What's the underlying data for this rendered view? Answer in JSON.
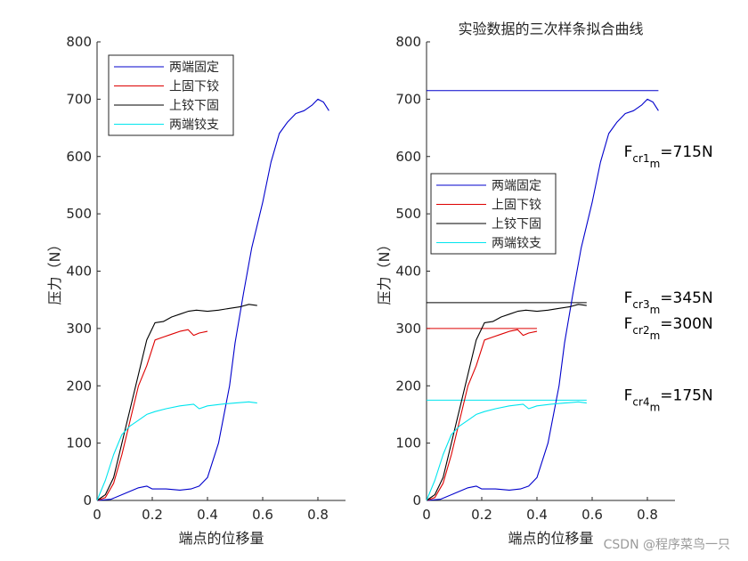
{
  "watermark": "CSDN @程序菜鸟一只",
  "colors": {
    "axis": "#262626",
    "series": [
      "#0000cc",
      "#dd0000",
      "#000000",
      "#00e5ee"
    ]
  },
  "chart_data": [
    {
      "type": "line",
      "title": "",
      "xlabel": "端点的位移量",
      "ylabel": "压力（N）",
      "xlim": [
        0,
        0.9
      ],
      "ylim": [
        0,
        800
      ],
      "xticks": [
        0,
        0.2,
        0.4,
        0.6,
        0.8
      ],
      "yticks": [
        0,
        100,
        200,
        300,
        400,
        500,
        600,
        700,
        800
      ],
      "legend_position": "top-left",
      "series": [
        {
          "name": "两端固定",
          "color": "#0000cc",
          "x": [
            0,
            0.05,
            0.1,
            0.15,
            0.18,
            0.2,
            0.25,
            0.3,
            0.34,
            0.37,
            0.4,
            0.44,
            0.48,
            0.5,
            0.53,
            0.56,
            0.6,
            0.63,
            0.66,
            0.69,
            0.72,
            0.75,
            0.78,
            0.8,
            0.82,
            0.84
          ],
          "y": [
            0,
            2,
            12,
            22,
            25,
            20,
            20,
            18,
            20,
            25,
            40,
            100,
            200,
            275,
            360,
            440,
            520,
            590,
            640,
            660,
            675,
            680,
            690,
            700,
            695,
            680
          ]
        },
        {
          "name": "上固下铰",
          "color": "#dd0000",
          "x": [
            0,
            0.03,
            0.06,
            0.09,
            0.12,
            0.15,
            0.18,
            0.21,
            0.24,
            0.27,
            0.3,
            0.33,
            0.35,
            0.37,
            0.4
          ],
          "y": [
            0,
            5,
            30,
            80,
            140,
            200,
            235,
            280,
            285,
            290,
            295,
            298,
            288,
            292,
            295
          ]
        },
        {
          "name": "上铰下固",
          "color": "#000000",
          "x": [
            0,
            0.03,
            0.06,
            0.09,
            0.12,
            0.15,
            0.18,
            0.21,
            0.24,
            0.27,
            0.3,
            0.33,
            0.36,
            0.4,
            0.44,
            0.48,
            0.52,
            0.55,
            0.58
          ],
          "y": [
            0,
            10,
            40,
            100,
            160,
            220,
            280,
            310,
            312,
            320,
            325,
            330,
            332,
            330,
            332,
            335,
            338,
            342,
            340
          ]
        },
        {
          "name": "两端铰支",
          "color": "#00e5ee",
          "x": [
            0,
            0.03,
            0.06,
            0.09,
            0.12,
            0.15,
            0.18,
            0.21,
            0.25,
            0.3,
            0.35,
            0.37,
            0.4,
            0.45,
            0.5,
            0.55,
            0.58
          ],
          "y": [
            0,
            35,
            80,
            115,
            130,
            140,
            150,
            155,
            160,
            165,
            168,
            160,
            165,
            168,
            170,
            172,
            170
          ]
        }
      ]
    },
    {
      "type": "line",
      "title": "实验数据的三次样条拟合曲线",
      "xlabel": "端点的位移量",
      "ylabel": "压力（N）",
      "xlim": [
        0,
        0.9
      ],
      "ylim": [
        0,
        800
      ],
      "xticks": [
        0,
        0.2,
        0.4,
        0.6,
        0.8
      ],
      "yticks": [
        0,
        100,
        200,
        300,
        400,
        500,
        600,
        700,
        800
      ],
      "legend_position": "middle-left",
      "series": [
        {
          "name": "两端固定",
          "color": "#0000cc",
          "x": [
            0,
            0.05,
            0.1,
            0.15,
            0.18,
            0.2,
            0.25,
            0.3,
            0.34,
            0.37,
            0.4,
            0.44,
            0.48,
            0.5,
            0.53,
            0.56,
            0.6,
            0.63,
            0.66,
            0.69,
            0.72,
            0.75,
            0.78,
            0.8,
            0.82,
            0.84
          ],
          "y": [
            0,
            2,
            12,
            22,
            25,
            20,
            20,
            18,
            20,
            25,
            40,
            100,
            200,
            275,
            360,
            440,
            520,
            590,
            640,
            660,
            675,
            680,
            690,
            700,
            695,
            680
          ]
        },
        {
          "name": "上固下铰",
          "color": "#dd0000",
          "x": [
            0,
            0.03,
            0.06,
            0.09,
            0.12,
            0.15,
            0.18,
            0.21,
            0.24,
            0.27,
            0.3,
            0.33,
            0.35,
            0.37,
            0.4
          ],
          "y": [
            0,
            5,
            30,
            80,
            140,
            200,
            235,
            280,
            285,
            290,
            295,
            298,
            288,
            292,
            295
          ]
        },
        {
          "name": "上铰下固",
          "color": "#000000",
          "x": [
            0,
            0.03,
            0.06,
            0.09,
            0.12,
            0.15,
            0.18,
            0.21,
            0.24,
            0.27,
            0.3,
            0.33,
            0.36,
            0.4,
            0.44,
            0.48,
            0.52,
            0.55,
            0.58
          ],
          "y": [
            0,
            10,
            40,
            100,
            160,
            220,
            280,
            310,
            312,
            320,
            325,
            330,
            332,
            330,
            332,
            335,
            338,
            342,
            340
          ]
        },
        {
          "name": "两端铰支",
          "color": "#00e5ee",
          "x": [
            0,
            0.03,
            0.06,
            0.09,
            0.12,
            0.15,
            0.18,
            0.21,
            0.25,
            0.3,
            0.35,
            0.37,
            0.4,
            0.45,
            0.5,
            0.55,
            0.58
          ],
          "y": [
            0,
            35,
            80,
            115,
            130,
            140,
            150,
            155,
            160,
            165,
            168,
            160,
            165,
            168,
            170,
            172,
            170
          ]
        }
      ],
      "hlines": [
        {
          "y": 715,
          "x": [
            0,
            0.84
          ],
          "color": "#0000cc"
        },
        {
          "y": 345,
          "x": [
            0,
            0.58
          ],
          "color": "#000000"
        },
        {
          "y": 300,
          "x": [
            0,
            0.4
          ],
          "color": "#dd0000"
        },
        {
          "y": 175,
          "x": [
            0,
            0.58
          ],
          "color": "#00e5ee"
        }
      ],
      "annotations": [
        {
          "main": "F",
          "sub": "cr1",
          "subsub": "m",
          "value": "=715N",
          "x": 0.715,
          "y": 600
        },
        {
          "main": "F",
          "sub": "cr3",
          "subsub": "m",
          "value": "=345N",
          "x": 0.715,
          "y": 345
        },
        {
          "main": "F",
          "sub": "cr2",
          "subsub": "m",
          "value": "=300N",
          "x": 0.715,
          "y": 300
        },
        {
          "main": "F",
          "sub": "cr4",
          "subsub": "m",
          "value": "=175N",
          "x": 0.715,
          "y": 175
        }
      ]
    }
  ]
}
